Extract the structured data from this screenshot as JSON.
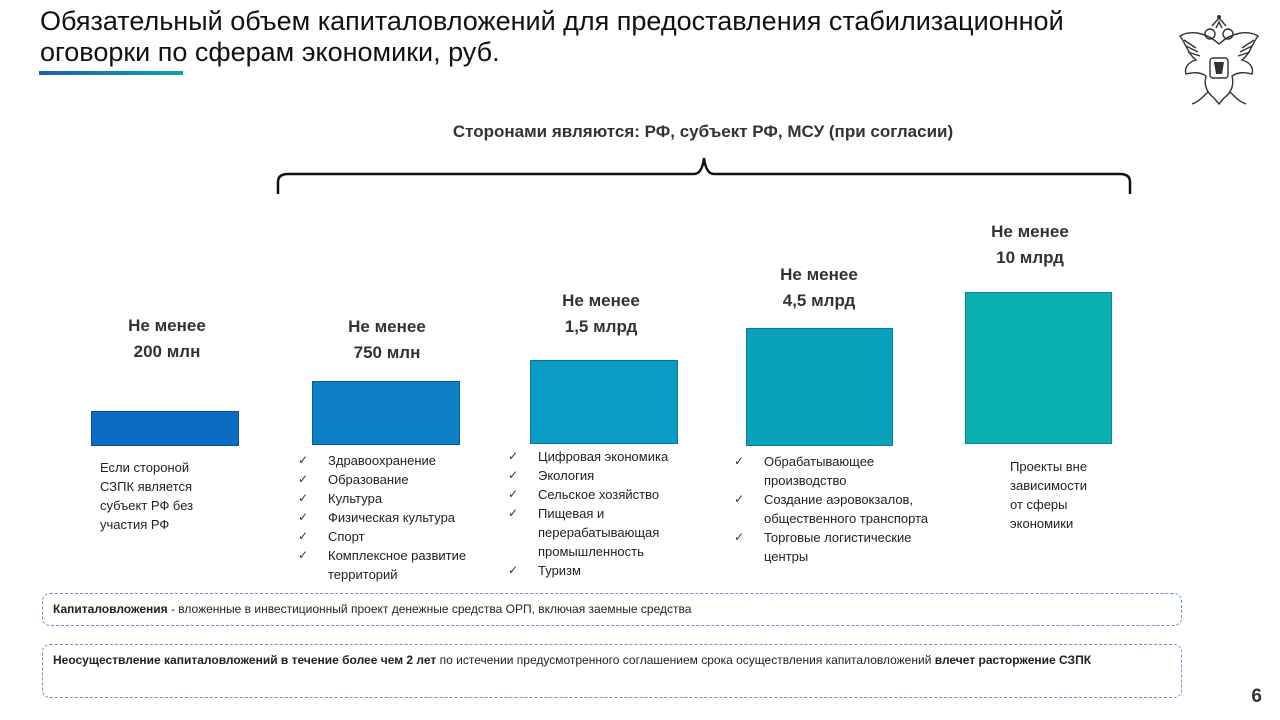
{
  "title": "Обязательный объем капиталовложений для предоставления стабилизационной оговорки по сферам экономики, руб.",
  "parties": "Сторонами являются: РФ, субъект РФ, МСУ (при согласии)",
  "colors": {
    "bar1": "#0a6cc4",
    "bar2": "#0d7fc6",
    "bar3": "#0a9cc4",
    "bar4": "#0aa2ba",
    "bar5": "#0ab0b0",
    "accent_line": "#1a5fb4"
  },
  "columns": [
    {
      "label_line1": "Не менее",
      "label_line2": "200 млн",
      "note": [
        "Если стороной",
        "СЗПК является",
        "субъект РФ без",
        "участия РФ"
      ],
      "sectors": []
    },
    {
      "label_line1": "Не менее",
      "label_line2": "750 млн",
      "note": [],
      "sectors": [
        "Здравоохранение",
        "Образование",
        "Культура",
        "Физическая культура",
        "Спорт",
        "Комплексное развитие территорий"
      ]
    },
    {
      "label_line1": "Не менее",
      "label_line2": "1,5 млрд",
      "note": [],
      "sectors": [
        "Цифровая экономика",
        "Экология",
        "Сельское хозяйство",
        "Пищевая и перерабатывающая промышленность",
        "Туризм"
      ]
    },
    {
      "label_line1": "Не менее",
      "label_line2": "4,5 млрд",
      "note": [],
      "sectors": [
        "Обрабатывающее производство",
        "Создание аэровокзалов, общественного транспорта",
        "Торговые логистические центры"
      ]
    },
    {
      "label_line1": "Не менее",
      "label_line2": "10 млрд",
      "note": [
        "Проекты вне",
        "зависимости",
        "от сферы",
        "экономики"
      ],
      "sectors": []
    }
  ],
  "definitions": {
    "capital_term": "Капиталовложения",
    "capital_text": " - вложенные в инвестиционный проект денежные средства ОРП, включая заемные средства",
    "failure_bold1": "Неосуществление капиталовложений в течение более чем 2 лет",
    "failure_text": " по истечении предусмотренного соглашением срока осуществления капиталовложений ",
    "failure_bold2": "влечет расторжение СЗПК"
  },
  "page_number": "6",
  "icons": {
    "emblem": "coat-of-arms-icon",
    "check": "checkmark-icon"
  }
}
